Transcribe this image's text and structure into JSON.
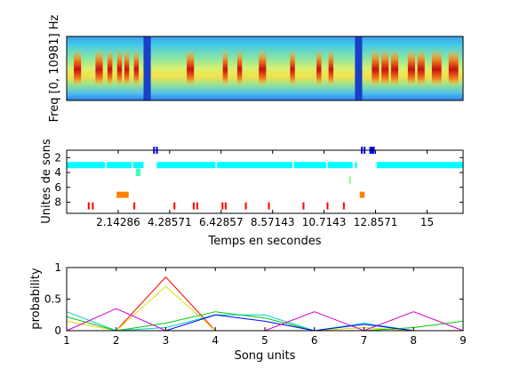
{
  "panels": {
    "spectrogram": {
      "ylabel": "Freq [0, 10981] Hz"
    },
    "units_timeline": {
      "ylabel": "Unites de sons",
      "xlabel": "Temps en secondes",
      "xticks": [
        "2.14286",
        "4.28571",
        "6.42857",
        "8.57143",
        "10.7143",
        "12.8571",
        "15"
      ],
      "yticks": [
        "2",
        "4",
        "6",
        "8"
      ]
    },
    "probability": {
      "ylabel": "probability",
      "xlabel": "Song units",
      "xticks": [
        "1",
        "2",
        "3",
        "4",
        "5",
        "6",
        "7",
        "8",
        "9"
      ],
      "yticks": [
        "0",
        "0.5",
        "1"
      ]
    }
  },
  "chart_data": [
    {
      "type": "heatmap",
      "ylabel": "Freq [0, 10981] Hz",
      "xlim": [
        0,
        16.5
      ],
      "colormap": "jet",
      "note_intervals_s": [
        [
          0.3,
          0.6
        ],
        [
          1.2,
          1.5
        ],
        [
          1.7,
          1.9
        ],
        [
          2.1,
          2.3
        ],
        [
          2.4,
          2.6
        ],
        [
          2.8,
          3.0
        ],
        [
          5.0,
          5.3
        ],
        [
          6.5,
          6.7
        ],
        [
          7.1,
          7.3
        ],
        [
          8.0,
          8.3
        ],
        [
          9.3,
          9.5
        ],
        [
          10.4,
          10.6
        ],
        [
          10.9,
          11.1
        ],
        [
          12.7,
          13.0
        ],
        [
          13.1,
          13.4
        ],
        [
          13.5,
          13.8
        ],
        [
          14.2,
          14.5
        ],
        [
          14.6,
          14.9
        ],
        [
          15.2,
          15.6
        ],
        [
          15.9,
          16.3
        ]
      ],
      "silent_bands_s": [
        [
          3.2,
          3.5
        ],
        [
          12.0,
          12.3
        ]
      ]
    },
    {
      "type": "scatter",
      "xlabel": "Temps en secondes",
      "ylabel": "Unites de sons",
      "xlim": [
        0,
        16.5
      ],
      "ylim": [
        1,
        9.5
      ],
      "y_reversed": true,
      "xticks": [
        2.14286,
        4.28571,
        6.42857,
        8.57143,
        10.7143,
        12.8571,
        15
      ],
      "yticks": [
        2,
        4,
        6,
        8
      ],
      "segments": [
        {
          "unit": 1,
          "start": 3.6,
          "end": 3.66,
          "color": "#0000ff"
        },
        {
          "unit": 1,
          "start": 3.72,
          "end": 3.78,
          "color": "#0000ff"
        },
        {
          "unit": 1,
          "start": 12.25,
          "end": 12.31,
          "color": "#0000ff"
        },
        {
          "unit": 1,
          "start": 12.36,
          "end": 12.42,
          "color": "#0000ff"
        },
        {
          "unit": 1,
          "start": 12.6,
          "end": 12.82,
          "color": "#0000ff"
        },
        {
          "unit": 3,
          "start": 0.0,
          "end": 1.6,
          "color": "#00ffff"
        },
        {
          "unit": 3,
          "start": 1.66,
          "end": 2.7,
          "color": "#00ffff"
        },
        {
          "unit": 3,
          "start": 2.76,
          "end": 3.2,
          "color": "#00ffff"
        },
        {
          "unit": 3,
          "start": 3.75,
          "end": 6.2,
          "color": "#00ffff"
        },
        {
          "unit": 3,
          "start": 6.26,
          "end": 9.4,
          "color": "#00ffff"
        },
        {
          "unit": 3,
          "start": 9.46,
          "end": 10.8,
          "color": "#00ffff"
        },
        {
          "unit": 3,
          "start": 10.86,
          "end": 11.9,
          "color": "#00ffff"
        },
        {
          "unit": 3,
          "start": 12.0,
          "end": 12.08,
          "color": "#00ffff"
        },
        {
          "unit": 3,
          "start": 12.9,
          "end": 16.5,
          "color": "#00ffff"
        },
        {
          "unit": 4,
          "start": 2.88,
          "end": 3.08,
          "color": "#40ffbf"
        },
        {
          "unit": 5,
          "start": 11.75,
          "end": 11.8,
          "color": "#80ff80"
        },
        {
          "unit": 7,
          "start": 2.08,
          "end": 2.58,
          "color": "#ff8000"
        },
        {
          "unit": 7,
          "start": 12.2,
          "end": 12.4,
          "color": "#ff8000"
        },
        {
          "unit": 8.5,
          "start": 0.88,
          "end": 0.94,
          "color": "#ff0000"
        },
        {
          "unit": 8.5,
          "start": 1.05,
          "end": 1.11,
          "color": "#ff0000"
        },
        {
          "unit": 8.5,
          "start": 2.78,
          "end": 2.84,
          "color": "#ff0000"
        },
        {
          "unit": 8.5,
          "start": 4.45,
          "end": 4.51,
          "color": "#ff0000"
        },
        {
          "unit": 8.5,
          "start": 5.25,
          "end": 5.31,
          "color": "#ff0000"
        },
        {
          "unit": 8.5,
          "start": 5.4,
          "end": 5.46,
          "color": "#ff0000"
        },
        {
          "unit": 8.5,
          "start": 6.45,
          "end": 6.51,
          "color": "#ff0000"
        },
        {
          "unit": 8.5,
          "start": 6.58,
          "end": 6.64,
          "color": "#ff0000"
        },
        {
          "unit": 8.5,
          "start": 7.42,
          "end": 7.48,
          "color": "#ff0000"
        },
        {
          "unit": 8.5,
          "start": 8.38,
          "end": 8.44,
          "color": "#ff0000"
        },
        {
          "unit": 8.5,
          "start": 9.82,
          "end": 9.88,
          "color": "#ff0000"
        },
        {
          "unit": 8.5,
          "start": 10.82,
          "end": 10.88,
          "color": "#ff0000"
        },
        {
          "unit": 8.5,
          "start": 11.5,
          "end": 11.56,
          "color": "#ff0000"
        }
      ]
    },
    {
      "type": "line",
      "xlabel": "Song units",
      "ylabel": "probability",
      "x": [
        1,
        2,
        3,
        4,
        5,
        6,
        7,
        8,
        9
      ],
      "xlim": [
        1,
        9
      ],
      "ylim": [
        0,
        1
      ],
      "series": [
        {
          "color": "#ff0000",
          "values": [
            0.0,
            0.0,
            0.85,
            0.0,
            0.0,
            0.0,
            0.0,
            0.0,
            0.0
          ]
        },
        {
          "color": "#dddd00",
          "values": [
            0.15,
            0.0,
            0.7,
            0.0,
            0.0,
            0.0,
            0.05,
            0.0,
            0.0
          ]
        },
        {
          "color": "#00cc00",
          "values": [
            0.22,
            0.0,
            0.12,
            0.3,
            0.2,
            0.0,
            0.0,
            0.05,
            0.15
          ]
        },
        {
          "color": "#00cccc",
          "values": [
            0.3,
            0.0,
            0.05,
            0.25,
            0.25,
            0.0,
            0.12,
            0.0,
            0.0
          ]
        },
        {
          "color": "#0000ff",
          "values": [
            0.0,
            0.0,
            0.0,
            0.25,
            0.15,
            0.0,
            0.1,
            0.0,
            0.0
          ]
        },
        {
          "color": "#cc00cc",
          "values": [
            0.0,
            0.35,
            0.0,
            0.0,
            0.0,
            0.3,
            0.0,
            0.3,
            0.0
          ]
        }
      ]
    }
  ]
}
